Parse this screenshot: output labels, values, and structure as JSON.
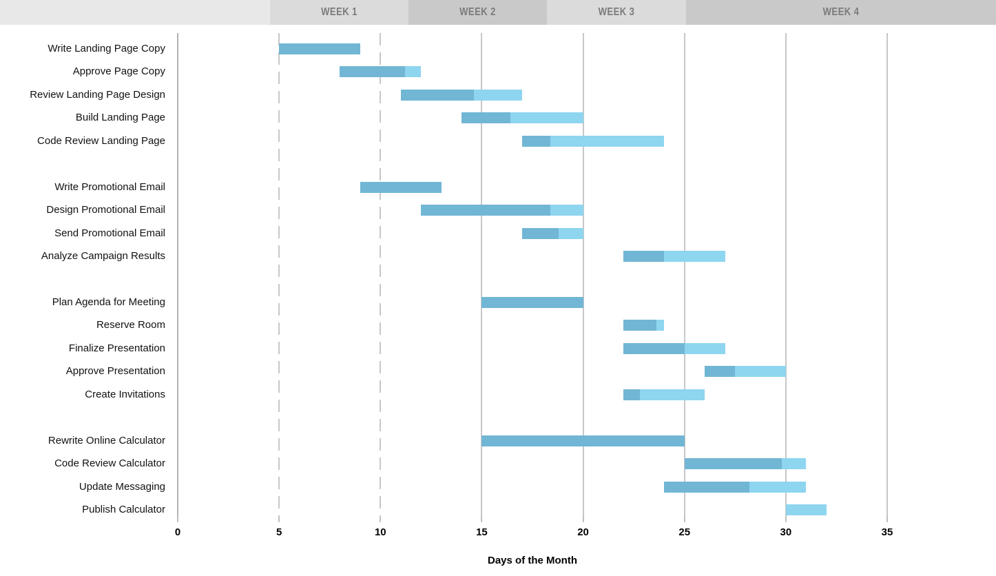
{
  "week_header": {
    "labels": [
      "WEEK 1",
      "WEEK 2",
      "WEEK 3",
      "WEEK 4"
    ]
  },
  "axis": {
    "tick_labels": [
      "0",
      "5",
      "10",
      "15",
      "20",
      "25",
      "30",
      "35"
    ],
    "title": "Days of the Month"
  },
  "chart_data": {
    "type": "gantt",
    "title": "",
    "xlabel": "Days of the Month",
    "xlim": [
      0,
      40
    ],
    "x_ticks": [
      0,
      5,
      10,
      15,
      20,
      25,
      30,
      35
    ],
    "week_headers": [
      "WEEK 1",
      "WEEK 2",
      "WEEK 3",
      "WEEK 4"
    ],
    "dashed_gridline_days": [
      5,
      10
    ],
    "solid_gridline_days": [
      15,
      20,
      25,
      30,
      35
    ],
    "zero_line_day": 0,
    "legend": {
      "complete": "completed portion (dark blue)",
      "remaining": "remaining portion (light blue)"
    },
    "colors": {
      "bar_complete": "#71b6d4",
      "bar_remaining": "#8ed5f0",
      "header_pale": "#e8e8e8",
      "header_light": "#dbdbdb",
      "header_dark": "#c9c9c9",
      "week_label_text": "#7b7b7b",
      "gridline": "#c7c7c7",
      "zero_line": "#b3b3b3",
      "tick_mark": "#c0c0c0",
      "label_text": "#111111"
    },
    "tasks": [
      {
        "name": "Write Landing Page Copy",
        "start": 5,
        "end": 9,
        "complete_until": 9,
        "row": 0
      },
      {
        "name": "Approve Page Copy",
        "start": 8,
        "end": 12,
        "complete_until": 11.2,
        "row": 1
      },
      {
        "name": "Review Landing Page Design",
        "start": 11,
        "end": 17,
        "complete_until": 14.6,
        "row": 2
      },
      {
        "name": "Build Landing Page",
        "start": 14,
        "end": 20,
        "complete_until": 16.4,
        "row": 3
      },
      {
        "name": "Code Review Landing Page",
        "start": 17,
        "end": 24,
        "complete_until": 18.4,
        "row": 4
      },
      {
        "name": "Write Promotional Email",
        "start": 9,
        "end": 13,
        "complete_until": 13,
        "row": 6
      },
      {
        "name": "Design Promotional Email",
        "start": 12,
        "end": 20,
        "complete_until": 18.4,
        "row": 7
      },
      {
        "name": "Send Promotional Email",
        "start": 17,
        "end": 20,
        "complete_until": 18.8,
        "row": 8
      },
      {
        "name": "Analyze Campaign Results",
        "start": 22,
        "end": 27,
        "complete_until": 24,
        "row": 9
      },
      {
        "name": "Plan Agenda for Meeting",
        "start": 15,
        "end": 20,
        "complete_until": 20,
        "row": 11
      },
      {
        "name": "Reserve Room",
        "start": 22,
        "end": 24,
        "complete_until": 23.6,
        "row": 12
      },
      {
        "name": "Finalize Presentation",
        "start": 22,
        "end": 27,
        "complete_until": 25,
        "row": 13
      },
      {
        "name": "Approve Presentation",
        "start": 26,
        "end": 30,
        "complete_until": 27.5,
        "row": 14
      },
      {
        "name": "Create Invitations",
        "start": 22,
        "end": 26,
        "complete_until": 22.8,
        "row": 15
      },
      {
        "name": "Rewrite Online Calculator",
        "start": 15,
        "end": 25,
        "complete_until": 25,
        "row": 17
      },
      {
        "name": "Code Review Calculator",
        "start": 25,
        "end": 31,
        "complete_until": 29.8,
        "row": 18
      },
      {
        "name": "Update Messaging",
        "start": 24,
        "end": 31,
        "complete_until": 28.2,
        "row": 19
      },
      {
        "name": "Publish Calculator",
        "start": 30,
        "end": 32,
        "complete_until": 30,
        "row": 20
      }
    ]
  }
}
